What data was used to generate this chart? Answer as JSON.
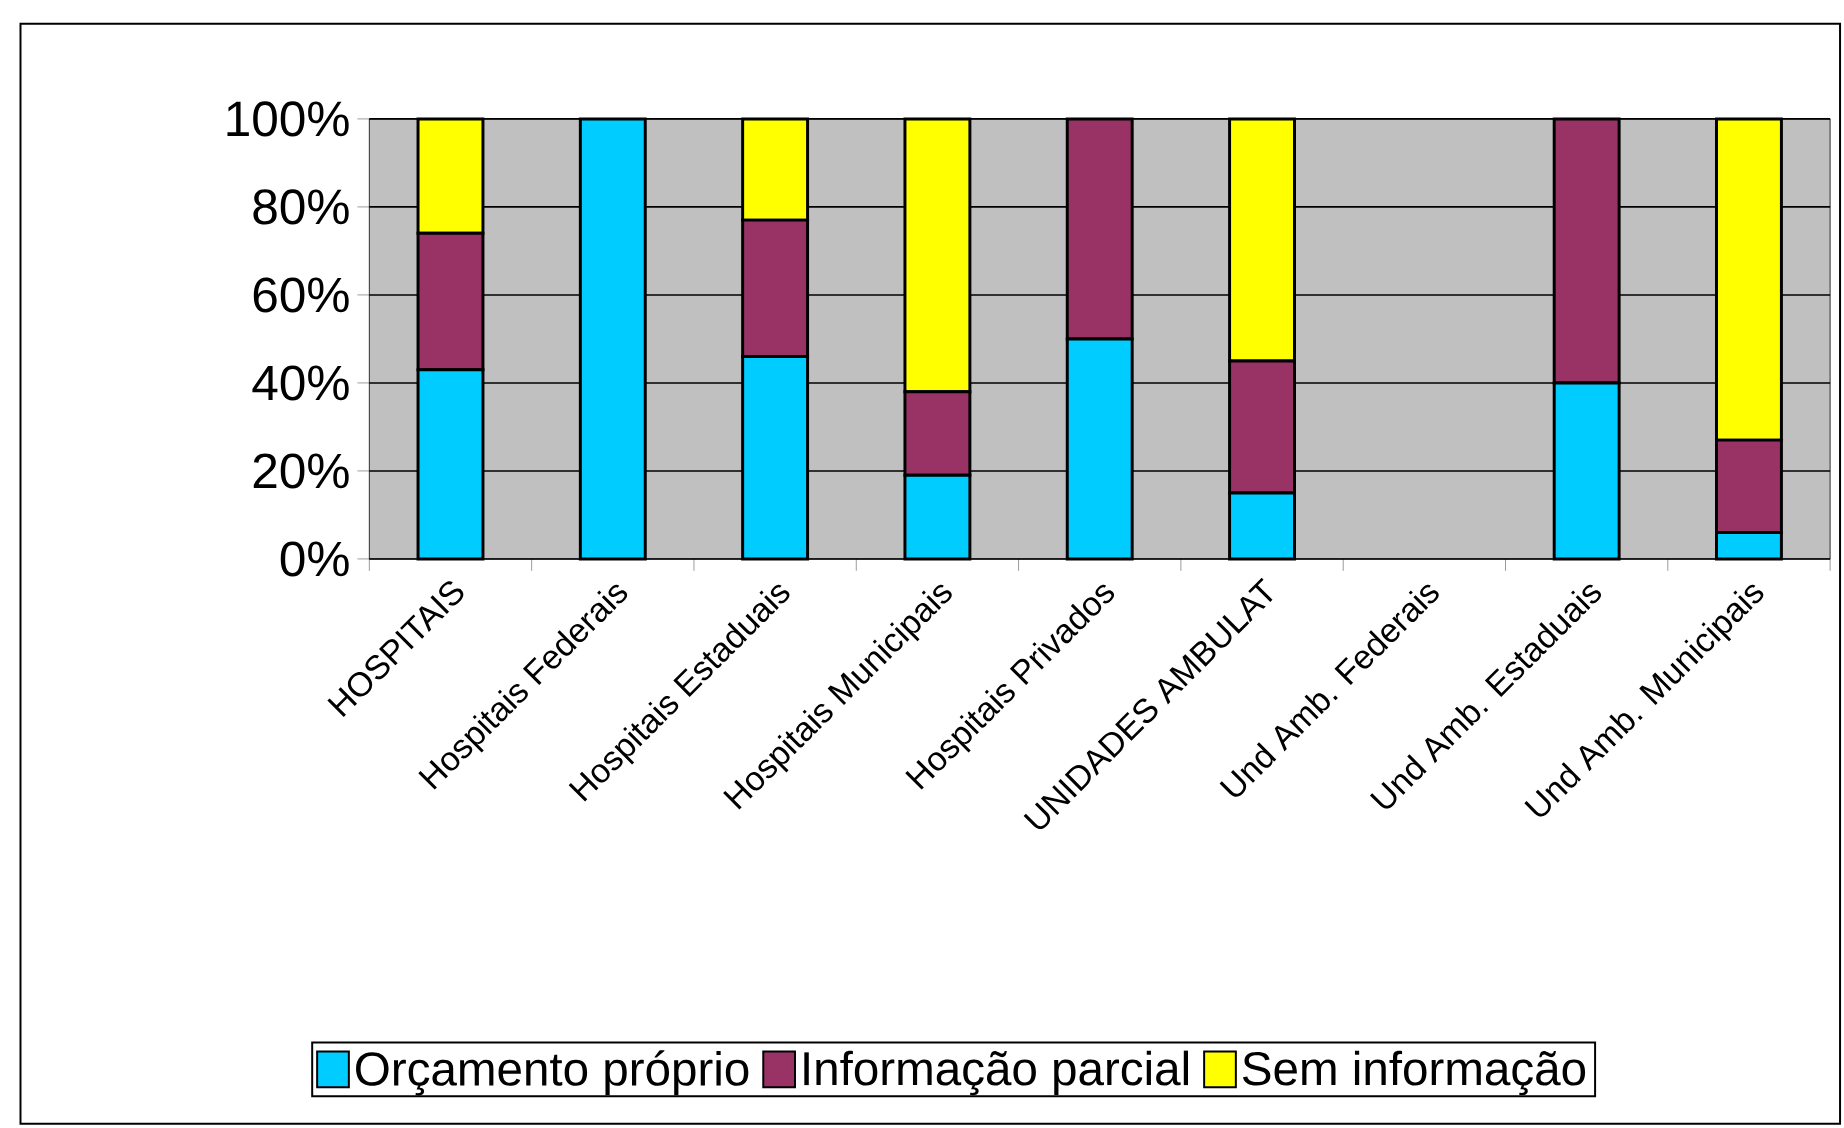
{
  "chart_data": {
    "type": "bar",
    "stacked": true,
    "categories": [
      "HOSPITAIS",
      "Hospitais Federais",
      "Hospitais Estaduais",
      "Hospitais Municipais",
      "Hospitais Privados",
      "UNIDADES AMBULAT",
      "Und Amb. Federais",
      "Und Amb. Estaduais",
      "Und Amb. Municipais"
    ],
    "series": [
      {
        "name": "Orçamento próprio",
        "color": "#00ccff",
        "values": [
          43,
          100,
          46,
          19,
          50,
          15,
          0,
          40,
          6
        ]
      },
      {
        "name": "Informação parcial",
        "color": "#993366",
        "values": [
          31,
          0,
          31,
          19,
          50,
          30,
          0,
          60,
          21
        ]
      },
      {
        "name": "Sem informação",
        "color": "#ffff00",
        "values": [
          26,
          0,
          23,
          62,
          0,
          55,
          0,
          0,
          73
        ]
      }
    ],
    "ylim": [
      0,
      100
    ],
    "yticks": [
      {
        "value": 0,
        "label": "0%"
      },
      {
        "value": 20,
        "label": "20%"
      },
      {
        "value": 40,
        "label": "40%"
      },
      {
        "value": 60,
        "label": "60%"
      },
      {
        "value": 80,
        "label": "80%"
      },
      {
        "value": 100,
        "label": "100%"
      }
    ],
    "grid": "y",
    "legend": "bottom"
  }
}
